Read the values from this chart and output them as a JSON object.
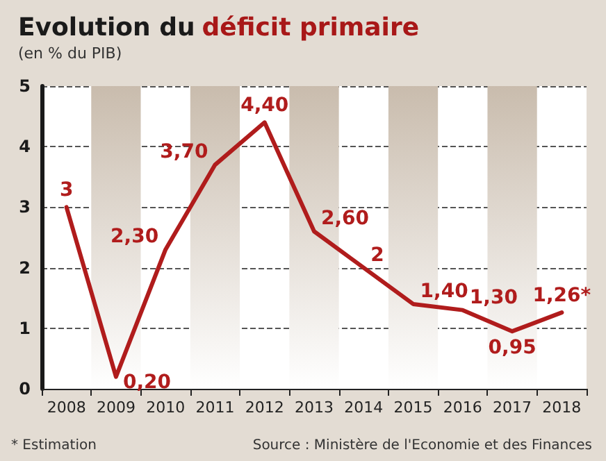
{
  "chart_data": {
    "type": "line",
    "title": "Evolution du déficit primaire",
    "subtitle": "(en % du PIB)",
    "categories": [
      "2008",
      "2009",
      "2010",
      "2011",
      "2012",
      "2013",
      "2014",
      "2015",
      "2016",
      "2017",
      "2018"
    ],
    "series": [
      {
        "color": "#b01c1c",
        "values": [
          3,
          0.2,
          2.3,
          3.7,
          4.4,
          2.6,
          2,
          1.4,
          1.3,
          0.95,
          1.26
        ],
        "value_labels": [
          "3",
          "0,20",
          "2,30",
          "3,70",
          "4,40",
          "2,60",
          "2",
          "1,40",
          "1,30",
          "0,95",
          "1,26*"
        ]
      }
    ],
    "ylim": [
      0,
      5
    ],
    "yticks": [
      0,
      1,
      2,
      3,
      4,
      5
    ],
    "grid": "y",
    "marker": "none",
    "line_style": "solid",
    "bands": [
      {
        "axis": "x",
        "from": "2009",
        "to": "2009",
        "color": "#c9bcad"
      },
      {
        "axis": "x",
        "from": "2011",
        "to": "2011",
        "color": "#c9bcad"
      },
      {
        "axis": "x",
        "from": "2013",
        "to": "2013",
        "color": "#c9bcad"
      },
      {
        "axis": "x",
        "from": "2015",
        "to": "2015",
        "color": "#c9bcad"
      },
      {
        "axis": "x",
        "from": "2017",
        "to": "2017",
        "color": "#c9bcad"
      }
    ],
    "annotations": [
      "* Estimation",
      "Source : Ministère de l'Economie et des Finances"
    ]
  }
}
